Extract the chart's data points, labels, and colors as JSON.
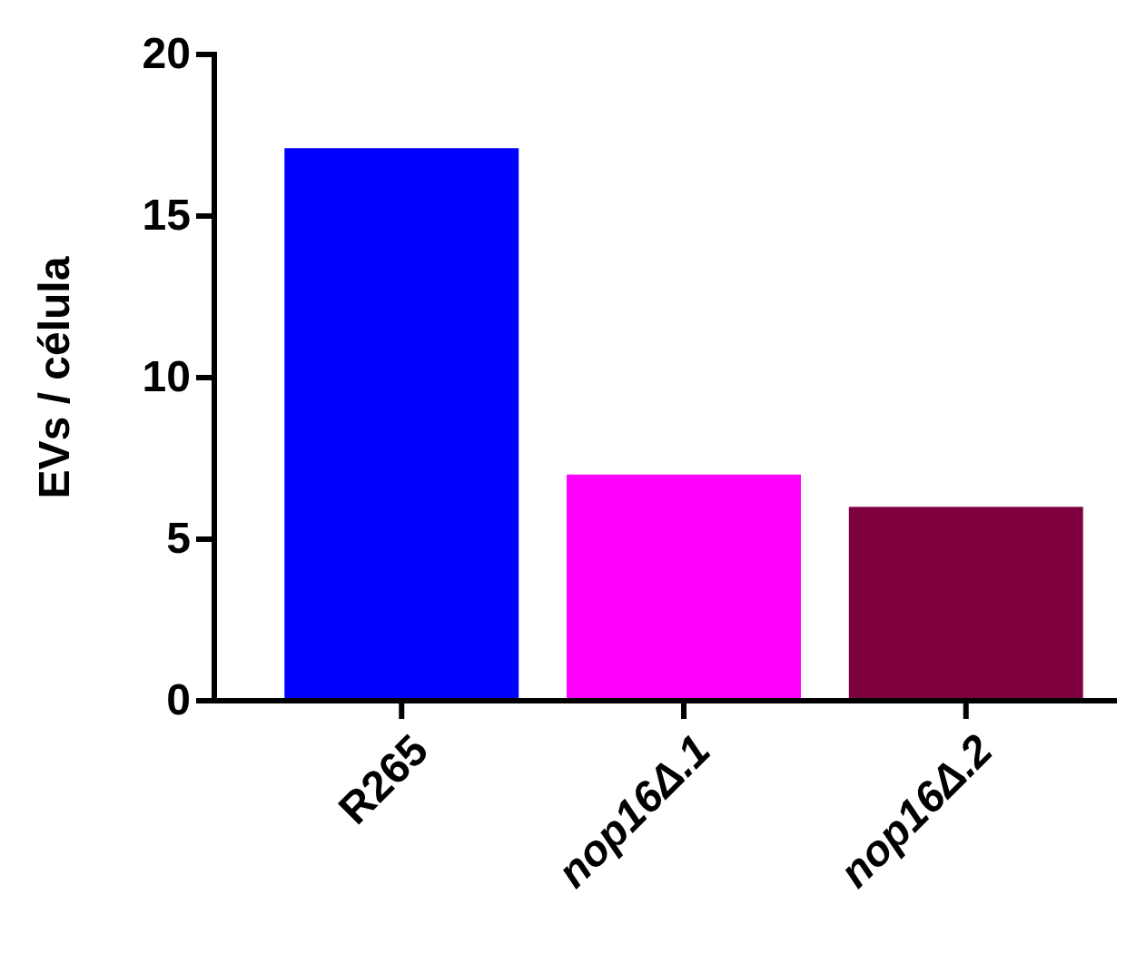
{
  "chart_data": {
    "type": "bar",
    "ylabel": "EVs / célula",
    "categories": [
      "R265",
      "nop16Δ.1",
      "nop16Δ.2"
    ],
    "values": [
      17.1,
      7,
      6
    ],
    "colors": [
      "#0000ff",
      "#ff00ff",
      "#7f003f"
    ],
    "ylim": [
      0,
      20
    ],
    "yticks": [
      0,
      5,
      10,
      15,
      20
    ]
  }
}
